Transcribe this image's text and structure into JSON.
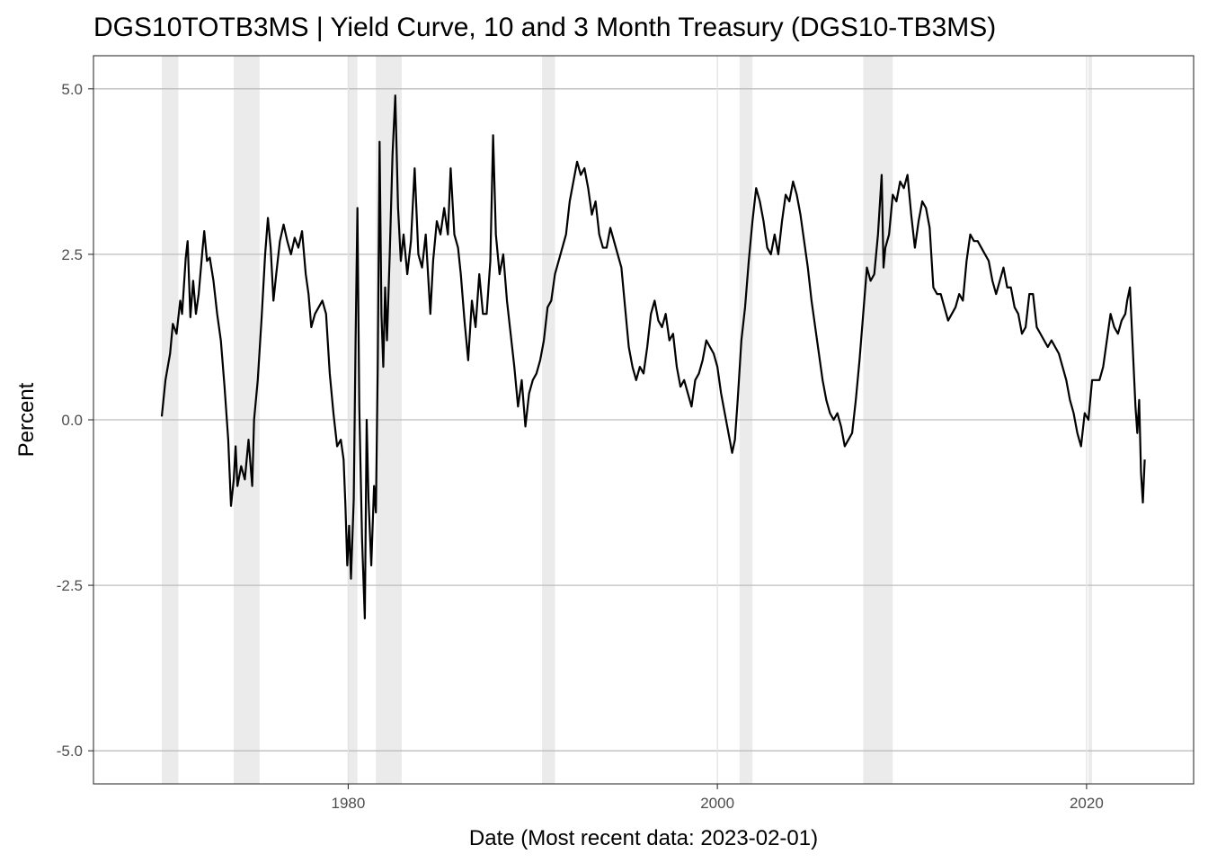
{
  "chart_data": {
    "type": "line",
    "title": "DGS10TOTB3MS | Yield Curve, 10 and 3 Month Treasury (DGS10-TB3MS)",
    "xlabel": "Date (Most recent data: 2023-02-01)",
    "ylabel": "Percent",
    "x_ticks": [
      1980,
      2000,
      2020
    ],
    "y_ticks": [
      5.0,
      2.5,
      0.0,
      -2.5,
      -5.0
    ],
    "y_tick_labels": [
      "5.0",
      "2.5",
      "0.0",
      "-2.5",
      "-5.0"
    ],
    "xlim": [
      1966.2,
      2025.8
    ],
    "ylim": [
      -5.5,
      5.5
    ],
    "grid": true,
    "line_color": "#000000",
    "recession_color": "#ebebeb",
    "recessions": [
      [
        1969.9,
        1970.8
      ],
      [
        1973.8,
        1975.2
      ],
      [
        1980.0,
        1980.5
      ],
      [
        1981.5,
        1982.9
      ],
      [
        1990.5,
        1991.2
      ],
      [
        2001.2,
        2001.9
      ],
      [
        2007.9,
        2009.5
      ],
      [
        2020.1,
        2020.3
      ]
    ],
    "series": [
      {
        "values": [
          [
            1969.9,
            0.05
          ],
          [
            1970.1,
            0.6
          ],
          [
            1970.35,
            1.0
          ],
          [
            1970.5,
            1.45
          ],
          [
            1970.7,
            1.3
          ],
          [
            1970.9,
            1.8
          ],
          [
            1971.0,
            1.6
          ],
          [
            1971.2,
            2.45
          ],
          [
            1971.3,
            2.7
          ],
          [
            1971.45,
            1.55
          ],
          [
            1971.6,
            2.1
          ],
          [
            1971.75,
            1.6
          ],
          [
            1971.9,
            1.9
          ],
          [
            1972.1,
            2.55
          ],
          [
            1972.2,
            2.85
          ],
          [
            1972.35,
            2.4
          ],
          [
            1972.5,
            2.45
          ],
          [
            1972.7,
            2.1
          ],
          [
            1972.9,
            1.6
          ],
          [
            1973.1,
            1.2
          ],
          [
            1973.3,
            0.5
          ],
          [
            1973.5,
            -0.3
          ],
          [
            1973.65,
            -1.3
          ],
          [
            1973.8,
            -0.9
          ],
          [
            1973.9,
            -0.4
          ],
          [
            1974.0,
            -1.0
          ],
          [
            1974.2,
            -0.7
          ],
          [
            1974.4,
            -0.9
          ],
          [
            1974.6,
            -0.3
          ],
          [
            1974.8,
            -1.0
          ],
          [
            1974.9,
            0.0
          ],
          [
            1975.1,
            0.6
          ],
          [
            1975.3,
            1.5
          ],
          [
            1975.5,
            2.5
          ],
          [
            1975.65,
            3.05
          ],
          [
            1975.8,
            2.6
          ],
          [
            1975.95,
            1.8
          ],
          [
            1976.1,
            2.2
          ],
          [
            1976.3,
            2.7
          ],
          [
            1976.5,
            2.95
          ],
          [
            1976.7,
            2.7
          ],
          [
            1976.9,
            2.5
          ],
          [
            1977.1,
            2.75
          ],
          [
            1977.3,
            2.6
          ],
          [
            1977.5,
            2.85
          ],
          [
            1977.7,
            2.2
          ],
          [
            1977.85,
            1.9
          ],
          [
            1978.0,
            1.4
          ],
          [
            1978.2,
            1.6
          ],
          [
            1978.4,
            1.7
          ],
          [
            1978.6,
            1.8
          ],
          [
            1978.8,
            1.6
          ],
          [
            1979.0,
            0.7
          ],
          [
            1979.2,
            0.1
          ],
          [
            1979.4,
            -0.4
          ],
          [
            1979.6,
            -0.3
          ],
          [
            1979.75,
            -0.6
          ],
          [
            1979.85,
            -1.3
          ],
          [
            1979.95,
            -2.2
          ],
          [
            1980.05,
            -1.6
          ],
          [
            1980.15,
            -2.4
          ],
          [
            1980.3,
            -1.2
          ],
          [
            1980.4,
            1.2
          ],
          [
            1980.5,
            3.2
          ],
          [
            1980.6,
            0.2
          ],
          [
            1980.75,
            -1.8
          ],
          [
            1980.9,
            -3.0
          ],
          [
            1981.0,
            0.0
          ],
          [
            1981.1,
            -1.2
          ],
          [
            1981.25,
            -2.2
          ],
          [
            1981.4,
            -1.0
          ],
          [
            1981.5,
            -1.4
          ],
          [
            1981.6,
            0.8
          ],
          [
            1981.7,
            4.2
          ],
          [
            1981.8,
            1.6
          ],
          [
            1981.9,
            0.8
          ],
          [
            1982.0,
            2.0
          ],
          [
            1982.1,
            1.2
          ],
          [
            1982.25,
            2.5
          ],
          [
            1982.4,
            4.0
          ],
          [
            1982.55,
            4.9
          ],
          [
            1982.7,
            3.2
          ],
          [
            1982.85,
            2.4
          ],
          [
            1983.0,
            2.8
          ],
          [
            1983.2,
            2.2
          ],
          [
            1983.4,
            2.7
          ],
          [
            1983.6,
            3.8
          ],
          [
            1983.8,
            2.5
          ],
          [
            1984.0,
            2.3
          ],
          [
            1984.2,
            2.8
          ],
          [
            1984.45,
            1.6
          ],
          [
            1984.6,
            2.4
          ],
          [
            1984.8,
            3.0
          ],
          [
            1985.0,
            2.8
          ],
          [
            1985.2,
            3.2
          ],
          [
            1985.4,
            2.8
          ],
          [
            1985.55,
            3.8
          ],
          [
            1985.75,
            2.8
          ],
          [
            1985.95,
            2.6
          ],
          [
            1986.1,
            2.2
          ],
          [
            1986.3,
            1.5
          ],
          [
            1986.5,
            0.9
          ],
          [
            1986.7,
            1.8
          ],
          [
            1986.9,
            1.4
          ],
          [
            1987.1,
            2.2
          ],
          [
            1987.3,
            1.6
          ],
          [
            1987.5,
            1.6
          ],
          [
            1987.7,
            2.4
          ],
          [
            1987.85,
            4.3
          ],
          [
            1988.0,
            2.8
          ],
          [
            1988.2,
            2.2
          ],
          [
            1988.4,
            2.5
          ],
          [
            1988.6,
            1.8
          ],
          [
            1988.8,
            1.3
          ],
          [
            1989.0,
            0.8
          ],
          [
            1989.2,
            0.2
          ],
          [
            1989.4,
            0.6
          ],
          [
            1989.6,
            -0.1
          ],
          [
            1989.8,
            0.4
          ],
          [
            1990.0,
            0.6
          ],
          [
            1990.2,
            0.7
          ],
          [
            1990.4,
            0.9
          ],
          [
            1990.6,
            1.2
          ],
          [
            1990.8,
            1.7
          ],
          [
            1991.0,
            1.8
          ],
          [
            1991.2,
            2.2
          ],
          [
            1991.4,
            2.4
          ],
          [
            1991.6,
            2.6
          ],
          [
            1991.8,
            2.8
          ],
          [
            1992.0,
            3.3
          ],
          [
            1992.2,
            3.6
          ],
          [
            1992.4,
            3.9
          ],
          [
            1992.6,
            3.7
          ],
          [
            1992.8,
            3.8
          ],
          [
            1993.0,
            3.5
          ],
          [
            1993.2,
            3.1
          ],
          [
            1993.4,
            3.3
          ],
          [
            1993.6,
            2.8
          ],
          [
            1993.8,
            2.6
          ],
          [
            1994.0,
            2.6
          ],
          [
            1994.2,
            2.9
          ],
          [
            1994.4,
            2.7
          ],
          [
            1994.6,
            2.5
          ],
          [
            1994.8,
            2.3
          ],
          [
            1995.0,
            1.7
          ],
          [
            1995.2,
            1.1
          ],
          [
            1995.4,
            0.8
          ],
          [
            1995.6,
            0.6
          ],
          [
            1995.8,
            0.8
          ],
          [
            1996.0,
            0.7
          ],
          [
            1996.2,
            1.1
          ],
          [
            1996.4,
            1.6
          ],
          [
            1996.6,
            1.8
          ],
          [
            1996.8,
            1.5
          ],
          [
            1997.0,
            1.4
          ],
          [
            1997.2,
            1.6
          ],
          [
            1997.4,
            1.2
          ],
          [
            1997.6,
            1.3
          ],
          [
            1997.8,
            0.8
          ],
          [
            1998.0,
            0.5
          ],
          [
            1998.2,
            0.6
          ],
          [
            1998.4,
            0.4
          ],
          [
            1998.6,
            0.2
          ],
          [
            1998.8,
            0.6
          ],
          [
            1999.0,
            0.7
          ],
          [
            1999.2,
            0.9
          ],
          [
            1999.4,
            1.2
          ],
          [
            1999.6,
            1.1
          ],
          [
            1999.8,
            1.0
          ],
          [
            2000.0,
            0.8
          ],
          [
            2000.2,
            0.4
          ],
          [
            2000.4,
            0.1
          ],
          [
            2000.6,
            -0.2
          ],
          [
            2000.8,
            -0.5
          ],
          [
            2000.95,
            -0.3
          ],
          [
            2001.1,
            0.3
          ],
          [
            2001.3,
            1.2
          ],
          [
            2001.5,
            1.7
          ],
          [
            2001.7,
            2.4
          ],
          [
            2001.9,
            3.0
          ],
          [
            2002.1,
            3.5
          ],
          [
            2002.3,
            3.3
          ],
          [
            2002.5,
            3.0
          ],
          [
            2002.7,
            2.6
          ],
          [
            2002.9,
            2.5
          ],
          [
            2003.1,
            2.8
          ],
          [
            2003.3,
            2.5
          ],
          [
            2003.5,
            3.0
          ],
          [
            2003.7,
            3.4
          ],
          [
            2003.9,
            3.3
          ],
          [
            2004.1,
            3.6
          ],
          [
            2004.3,
            3.4
          ],
          [
            2004.5,
            3.1
          ],
          [
            2004.7,
            2.7
          ],
          [
            2004.9,
            2.3
          ],
          [
            2005.1,
            1.8
          ],
          [
            2005.3,
            1.4
          ],
          [
            2005.5,
            1.0
          ],
          [
            2005.7,
            0.6
          ],
          [
            2005.9,
            0.3
          ],
          [
            2006.1,
            0.1
          ],
          [
            2006.3,
            0.0
          ],
          [
            2006.5,
            0.1
          ],
          [
            2006.7,
            -0.1
          ],
          [
            2006.9,
            -0.4
          ],
          [
            2007.1,
            -0.3
          ],
          [
            2007.3,
            -0.2
          ],
          [
            2007.5,
            0.3
          ],
          [
            2007.7,
            0.9
          ],
          [
            2007.9,
            1.6
          ],
          [
            2008.1,
            2.3
          ],
          [
            2008.3,
            2.1
          ],
          [
            2008.5,
            2.2
          ],
          [
            2008.7,
            2.8
          ],
          [
            2008.9,
            3.7
          ],
          [
            2009.0,
            2.3
          ],
          [
            2009.1,
            2.6
          ],
          [
            2009.3,
            2.8
          ],
          [
            2009.5,
            3.4
          ],
          [
            2009.7,
            3.3
          ],
          [
            2009.9,
            3.6
          ],
          [
            2010.1,
            3.5
          ],
          [
            2010.3,
            3.7
          ],
          [
            2010.5,
            3.1
          ],
          [
            2010.7,
            2.6
          ],
          [
            2010.9,
            3.0
          ],
          [
            2011.1,
            3.3
          ],
          [
            2011.3,
            3.2
          ],
          [
            2011.5,
            2.9
          ],
          [
            2011.7,
            2.0
          ],
          [
            2011.9,
            1.9
          ],
          [
            2012.1,
            1.9
          ],
          [
            2012.3,
            1.7
          ],
          [
            2012.5,
            1.5
          ],
          [
            2012.7,
            1.6
          ],
          [
            2012.9,
            1.7
          ],
          [
            2013.1,
            1.9
          ],
          [
            2013.3,
            1.8
          ],
          [
            2013.5,
            2.4
          ],
          [
            2013.7,
            2.8
          ],
          [
            2013.9,
            2.7
          ],
          [
            2014.1,
            2.7
          ],
          [
            2014.3,
            2.6
          ],
          [
            2014.5,
            2.5
          ],
          [
            2014.7,
            2.4
          ],
          [
            2014.9,
            2.1
          ],
          [
            2015.1,
            1.9
          ],
          [
            2015.3,
            2.1
          ],
          [
            2015.5,
            2.3
          ],
          [
            2015.7,
            2.0
          ],
          [
            2015.9,
            2.0
          ],
          [
            2016.1,
            1.7
          ],
          [
            2016.3,
            1.6
          ],
          [
            2016.5,
            1.3
          ],
          [
            2016.7,
            1.4
          ],
          [
            2016.9,
            1.9
          ],
          [
            2017.1,
            1.9
          ],
          [
            2017.3,
            1.4
          ],
          [
            2017.5,
            1.3
          ],
          [
            2017.7,
            1.2
          ],
          [
            2017.9,
            1.1
          ],
          [
            2018.1,
            1.2
          ],
          [
            2018.3,
            1.1
          ],
          [
            2018.5,
            1.0
          ],
          [
            2018.7,
            0.8
          ],
          [
            2018.9,
            0.6
          ],
          [
            2019.1,
            0.3
          ],
          [
            2019.3,
            0.1
          ],
          [
            2019.5,
            -0.2
          ],
          [
            2019.7,
            -0.4
          ],
          [
            2019.9,
            0.1
          ],
          [
            2020.1,
            0.0
          ],
          [
            2020.3,
            0.6
          ],
          [
            2020.5,
            0.6
          ],
          [
            2020.7,
            0.6
          ],
          [
            2020.9,
            0.8
          ],
          [
            2021.1,
            1.2
          ],
          [
            2021.3,
            1.6
          ],
          [
            2021.5,
            1.4
          ],
          [
            2021.7,
            1.3
          ],
          [
            2021.9,
            1.5
          ],
          [
            2022.1,
            1.6
          ],
          [
            2022.2,
            1.8
          ],
          [
            2022.35,
            2.0
          ],
          [
            2022.5,
            1.1
          ],
          [
            2022.65,
            0.2
          ],
          [
            2022.75,
            -0.2
          ],
          [
            2022.85,
            0.3
          ],
          [
            2022.95,
            -0.8
          ],
          [
            2023.05,
            -1.25
          ],
          [
            2023.15,
            -0.6
          ]
        ]
      }
    ]
  }
}
